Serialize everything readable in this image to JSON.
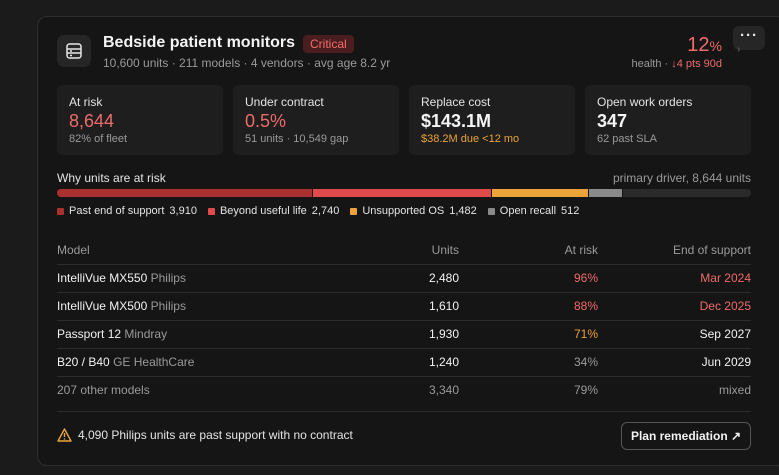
{
  "header": {
    "icon": "server-rack-icon",
    "title": "Bedside patient monitors",
    "badge": "Critical",
    "subtitle": "10,600 units · 211 models · 4 vendors · avg age 8.2 yr",
    "health_value": "12",
    "health_unit": "%",
    "health_label": "health · ",
    "health_delta": "↓4 pts 90d",
    "more_label": "···"
  },
  "stats": [
    {
      "label": "At risk",
      "value": "8,644",
      "sub": "82% of fleet"
    },
    {
      "label": "Under contract",
      "value": "0.5%",
      "sub": "51 units · 10,549 gap"
    },
    {
      "label": "Replace cost",
      "value": "$143.1M",
      "sub": "$38.2M due <12 mo"
    },
    {
      "label": "Open work orders",
      "value": "347",
      "sub": "62 past SLA"
    }
  ],
  "risk": {
    "title": "Why units are at risk",
    "driver": "primary driver, 8,644 units",
    "total": 10600,
    "segments": [
      {
        "label": "Past end of support",
        "value": 3910,
        "value_text": "3,910",
        "color": "#a8302f"
      },
      {
        "label": "Beyond useful life",
        "value": 2740,
        "value_text": "2,740",
        "color": "#e04a4a"
      },
      {
        "label": "Unsupported OS",
        "value": 1482,
        "value_text": "1,482",
        "color": "#eba33a"
      },
      {
        "label": "Open recall",
        "value": 512,
        "value_text": "512",
        "color": "#8a8a8a"
      }
    ]
  },
  "table": {
    "columns": [
      "Model",
      "Units",
      "At risk",
      "End of support"
    ],
    "rows": [
      {
        "model": "IntelliVue MX550",
        "vendor": "Philips",
        "units": "2,480",
        "at_risk": "96%",
        "eos": "Mar 2024"
      },
      {
        "model": "IntelliVue MX500",
        "vendor": "Philips",
        "units": "1,610",
        "at_risk": "88%",
        "eos": "Dec 2025"
      },
      {
        "model": "Passport 12",
        "vendor": "Mindray",
        "units": "1,930",
        "at_risk": "71%",
        "eos": "Sep 2027"
      },
      {
        "model": "B20 / B40",
        "vendor": "GE HealthCare",
        "units": "1,240",
        "at_risk": "34%",
        "eos": "Jun 2029"
      }
    ],
    "other": {
      "model": "207 other models",
      "units": "3,340",
      "at_risk": "79%",
      "eos": "mixed"
    }
  },
  "footer": {
    "warning": "4,090 Philips units are past support with no contract",
    "button": "Plan remediation ↗"
  },
  "colors": {
    "red": "#ef6b6b",
    "orange": "#eba33a",
    "badge_bg": "#4a1d1f"
  }
}
